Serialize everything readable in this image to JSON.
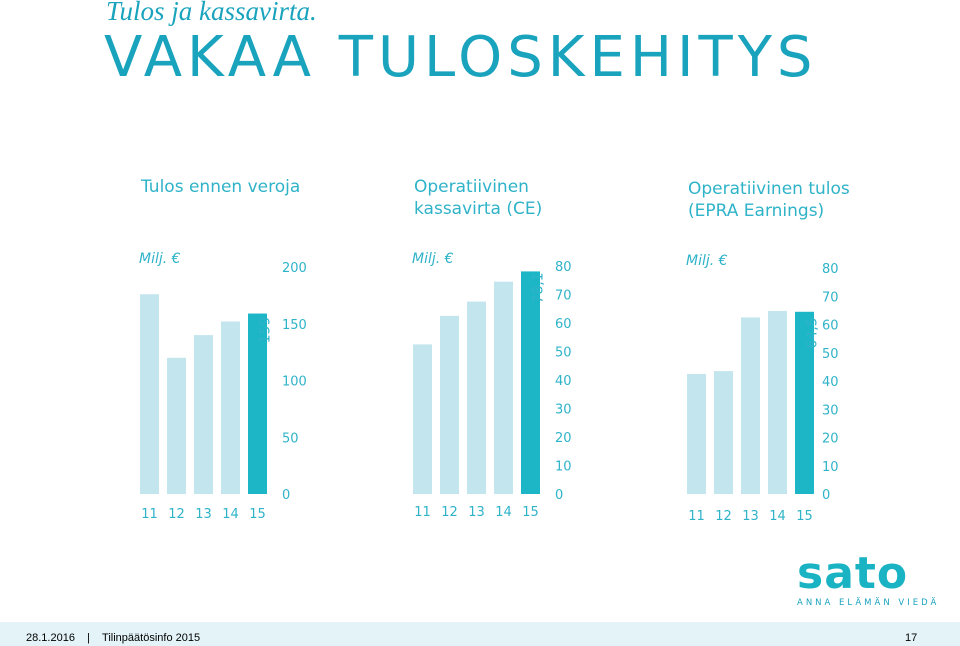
{
  "header": {
    "subtitle": "Tulos ja kassavirta.",
    "title": "VAKAA TULOSKEHITYS"
  },
  "colors": {
    "accent": "#19a3bd",
    "bar_light": "#c2e5ee",
    "bar_highlight": "#1cb6c7",
    "axis_text": "#2fb3c9"
  },
  "chart_data": [
    {
      "type": "bar",
      "title": "Tulos ennen veroja",
      "ylabel": "Milj. €",
      "categories": [
        "11",
        "12",
        "13",
        "14",
        "15"
      ],
      "values": [
        176,
        120,
        140,
        152,
        159
      ],
      "highlight_label": "159",
      "ylim": [
        0,
        200
      ],
      "yticks": [
        "0",
        "50",
        "100",
        "150",
        "200"
      ],
      "grid": false,
      "legend": "none"
    },
    {
      "type": "bar",
      "title": "Operatiivinen\nkassavirta (CE)",
      "ylabel": "Milj. €",
      "categories": [
        "11",
        "12",
        "13",
        "14",
        "15"
      ],
      "values": [
        52.5,
        62.5,
        67.5,
        74.5,
        78.1
      ],
      "highlight_label": "78,1",
      "ylim": [
        0,
        80
      ],
      "yticks": [
        "0",
        "10",
        "20",
        "30",
        "40",
        "50",
        "60",
        "70",
        "80"
      ],
      "grid": false,
      "legend": "none"
    },
    {
      "type": "bar",
      "title": "Operatiivinen tulos\n(EPRA Earnings)",
      "ylabel": "Milj. €",
      "categories": [
        "11",
        "12",
        "13",
        "14",
        "15"
      ],
      "values": [
        42.5,
        43.5,
        62.5,
        64.8,
        64.5
      ],
      "highlight_label": "64,5",
      "ylim": [
        0,
        80
      ],
      "yticks": [
        "0",
        "10",
        "20",
        "30",
        "40",
        "50",
        "60",
        "70",
        "80"
      ],
      "grid": false,
      "legend": "none"
    }
  ],
  "logo": {
    "word": "sato",
    "tagline": "ANNA ELÄMÄN VIEDÄ"
  },
  "footer": {
    "left": "28.1.2016    |    Tilinpäätösinfo 2015",
    "page": "17"
  }
}
